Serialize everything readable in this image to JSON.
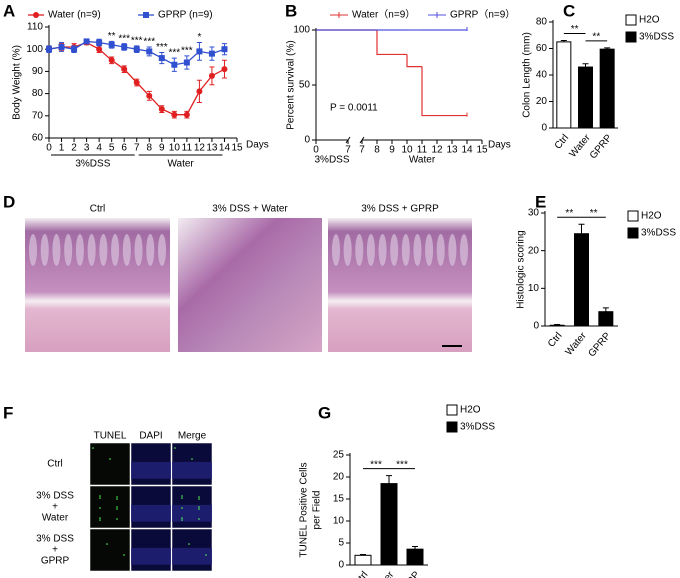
{
  "chart_data": [
    {
      "panel": "A",
      "type": "line",
      "ylabel": "Body Weight (%)",
      "xlabel": "Days",
      "x": [
        0,
        1,
        2,
        3,
        4,
        5,
        6,
        7,
        8,
        9,
        10,
        11,
        12,
        13,
        14
      ],
      "series": [
        {
          "name": "Water (n=9)",
          "color": "#e02020",
          "marker": "circle",
          "values": [
            100,
            101,
            101,
            103,
            100,
            95,
            91,
            85,
            79,
            73,
            70.5,
            70.5,
            81,
            88,
            91
          ],
          "errors": [
            1.5,
            1.5,
            1.5,
            1,
            1.5,
            1.5,
            1.5,
            1.5,
            2,
            1.5,
            1.5,
            1.5,
            5,
            4,
            4
          ]
        },
        {
          "name": "GPRP (n=9)",
          "color": "#3050d0",
          "marker": "square",
          "values": [
            100,
            101,
            100,
            103.5,
            103,
            102,
            101,
            100,
            99,
            96,
            93,
            94,
            99,
            98,
            100
          ],
          "errors": [
            1.5,
            2,
            1.5,
            1,
            1.5,
            1.5,
            1.5,
            1.5,
            2,
            2.5,
            3,
            3,
            4,
            3,
            2.5
          ]
        }
      ],
      "xlim": [
        0,
        15
      ],
      "xticks": [
        0,
        1,
        2,
        3,
        4,
        5,
        6,
        7,
        8,
        9,
        10,
        11,
        12,
        13,
        14,
        15
      ],
      "ylim": [
        60,
        110
      ],
      "yticks": [
        60,
        70,
        80,
        90,
        100,
        110
      ],
      "annotations": [
        {
          "x": 5,
          "text": "**"
        },
        {
          "x": 6,
          "text": "***"
        },
        {
          "x": 7,
          "text": "***"
        },
        {
          "x": 8,
          "text": "***"
        },
        {
          "x": 9,
          "text": "***"
        },
        {
          "x": 10,
          "text": "***"
        },
        {
          "x": 11,
          "text": "***"
        },
        {
          "x": 12,
          "text": "*"
        }
      ],
      "phases": [
        {
          "label": "3%DSS",
          "start": 0,
          "end": 7
        },
        {
          "label": "Water",
          "start": 7,
          "end": 14
        }
      ]
    },
    {
      "panel": "B",
      "type": "step",
      "ylabel": "Percent survival (%)",
      "xlabel": "Days",
      "x": [
        0,
        8,
        10,
        11,
        14
      ],
      "series": [
        {
          "name": "Water（n=9）",
          "color": "#e03030",
          "values": [
            100,
            77.8,
            66.7,
            22.2,
            22.2
          ]
        },
        {
          "name": "GPRP（n=9）",
          "color": "#5050e0",
          "values": [
            100,
            100,
            100,
            100,
            100
          ]
        }
      ],
      "xlim": [
        [
          0,
          7
        ],
        [
          7,
          15
        ]
      ],
      "xticks": [
        [
          0,
          7
        ],
        [
          7,
          8,
          9,
          10,
          11,
          12,
          13,
          14,
          15
        ]
      ],
      "ylim": [
        0,
        100
      ],
      "yticks": [
        0,
        50,
        100
      ],
      "annotations": [
        {
          "text": "P = 0.0011"
        }
      ],
      "phases": [
        {
          "label": "3%DSS",
          "start": 0,
          "end": 7
        },
        {
          "label": "Water",
          "start": 8,
          "end": 14
        }
      ]
    },
    {
      "panel": "C",
      "type": "bar",
      "ylabel": "Colon Length (mm)",
      "categories": [
        "Ctrl",
        "Water",
        "GPRP"
      ],
      "series": [
        {
          "name": "H2O",
          "color": "#ffffff",
          "values": [
            65,
            null,
            null
          ],
          "errors": [
            1,
            null,
            null
          ]
        },
        {
          "name": "3%DSS",
          "color": "#000000",
          "values": [
            null,
            46,
            59.5
          ],
          "errors": [
            null,
            2.5,
            1
          ]
        }
      ],
      "ylim": [
        0,
        80
      ],
      "yticks": [
        0,
        20,
        40,
        60,
        80
      ],
      "significance": [
        {
          "between": [
            "Ctrl",
            "Water"
          ],
          "text": "**"
        },
        {
          "between": [
            "Water",
            "GPRP"
          ],
          "text": "**"
        }
      ]
    },
    {
      "panel": "E",
      "type": "bar",
      "ylabel": "Histologic scoring",
      "categories": [
        "Ctrl",
        "Water",
        "GPRP"
      ],
      "series": [
        {
          "name": "H2O",
          "color": "#ffffff",
          "values": [
            0.2,
            null,
            null
          ],
          "errors": [
            0.2,
            null,
            null
          ]
        },
        {
          "name": "3%DSS",
          "color": "#000000",
          "values": [
            null,
            24.5,
            3.8
          ],
          "errors": [
            null,
            2.5,
            1
          ]
        }
      ],
      "ylim": [
        0,
        30
      ],
      "yticks": [
        0,
        10,
        20,
        30
      ],
      "significance": [
        {
          "between": [
            "Ctrl",
            "Water"
          ],
          "text": "**"
        },
        {
          "between": [
            "Water",
            "GPRP"
          ],
          "text": "**"
        }
      ]
    },
    {
      "panel": "G",
      "type": "bar",
      "ylabel": [
        "TUNEL Positive Cells",
        "per Field"
      ],
      "categories": [
        "Ctrl",
        "Water",
        "GPRP"
      ],
      "series": [
        {
          "name": "H2O",
          "color": "#ffffff",
          "values": [
            2.2,
            null,
            null
          ],
          "errors": [
            0.2,
            null,
            null
          ]
        },
        {
          "name": "3%DSS",
          "color": "#000000",
          "values": [
            null,
            18.5,
            3.6
          ],
          "errors": [
            null,
            1.8,
            0.6
          ]
        }
      ],
      "ylim": [
        0,
        25
      ],
      "yticks": [
        0,
        5,
        10,
        15,
        20,
        25
      ],
      "significance": [
        {
          "between": [
            "Ctrl",
            "Water"
          ],
          "text": "***"
        },
        {
          "between": [
            "Water",
            "GPRP"
          ],
          "text": "***"
        }
      ]
    }
  ],
  "histology": {
    "panel": "D",
    "titles": [
      "Ctrl",
      "3% DSS + Water",
      "3% DSS + GPRP"
    ]
  },
  "tunel": {
    "panel": "F",
    "columns": [
      "TUNEL",
      "DAPI",
      "Merge"
    ],
    "rows": [
      [
        "Ctrl"
      ],
      [
        "3% DSS",
        "+",
        "Water"
      ],
      [
        "3% DSS",
        "+",
        "GPRP"
      ]
    ]
  }
}
